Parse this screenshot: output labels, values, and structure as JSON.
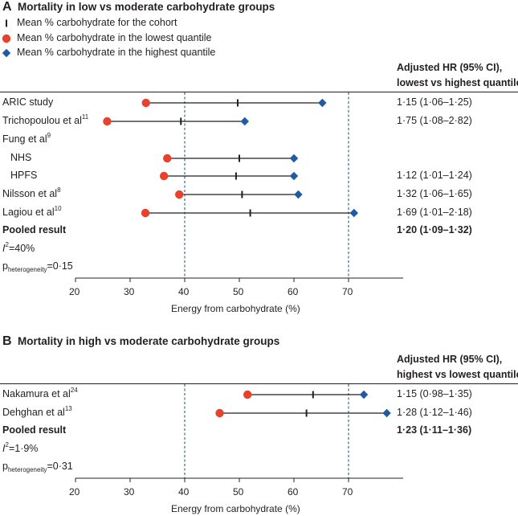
{
  "chart_data": [
    {
      "panel": "A",
      "type": "forest",
      "title": "Mortality in low vs moderate carbohydrate groups",
      "legend": [
        {
          "marker": "tick",
          "label": "Mean % carbohydrate for the cohort"
        },
        {
          "marker": "circle",
          "label": "Mean % carbohydrate in the lowest quantile"
        },
        {
          "marker": "diamond",
          "label": "Mean % carbohydrate in the highest quantile"
        }
      ],
      "hr_header": [
        "Adjusted HR (95% CI),",
        "lowest vs highest quantile"
      ],
      "xlabel": "Energy from carbohydrate (%)",
      "xlim": [
        20,
        80
      ],
      "xticks": [
        20,
        30,
        40,
        50,
        60,
        70
      ],
      "ref_lines": [
        40,
        70
      ],
      "rows": [
        {
          "label": "ARIC study",
          "sup": "",
          "low": 32.9,
          "mean": 49.7,
          "high": 65.2,
          "hr": "1·15 (1·06–1·25)"
        },
        {
          "label": "Trichopoulou et al",
          "sup": "11",
          "low": 25.8,
          "mean": 39.3,
          "high": 51.0,
          "hr": "1·75 (1·08–2·82)"
        },
        {
          "label": "Fung et al",
          "sup": "9",
          "low": null,
          "mean": null,
          "high": null,
          "hr": ""
        },
        {
          "label": "NHS",
          "sup": "",
          "indent": true,
          "low": 36.8,
          "mean": 50.0,
          "high": 60.0,
          "hr": ""
        },
        {
          "label": "HPFS",
          "sup": "",
          "indent": true,
          "low": 36.2,
          "mean": 49.4,
          "high": 60.0,
          "hr": "1·12 (1·01–1·24)"
        },
        {
          "label": "Nilsson et al",
          "sup": "8",
          "low": 39.0,
          "mean": 50.5,
          "high": 60.8,
          "hr": "1·32 (1·06–1·65)"
        },
        {
          "label": "Lagiou et al",
          "sup": "10",
          "low": 32.8,
          "mean": 52.0,
          "high": 71.0,
          "hr": "1·69 (1·01–2·18)"
        },
        {
          "label": "Pooled result",
          "sup": "",
          "bold": true,
          "low": null,
          "mean": null,
          "high": null,
          "hr": "1·20 (1·09–1·32)"
        }
      ],
      "stats": {
        "i2_symbol": "I",
        "i2_value": "=40%",
        "p_symbol": "p",
        "p_sub": "heterogeneity",
        "p_value": "=0·15"
      }
    },
    {
      "panel": "B",
      "type": "forest",
      "title": "Mortality in high vs moderate carbohydrate groups",
      "hr_header": [
        "Adjusted HR (95% CI),",
        "highest vs lowest quantile"
      ],
      "xlabel": "Energy from carbohydrate (%)",
      "xlim": [
        20,
        80
      ],
      "xticks": [
        20,
        30,
        40,
        50,
        60,
        70
      ],
      "ref_lines": [
        40,
        70
      ],
      "rows": [
        {
          "label": "Nakamura et al",
          "sup": "24",
          "low": 51.5,
          "mean": 63.5,
          "high": 72.8,
          "hr": "1·15 (0·98–1·35)"
        },
        {
          "label": "Dehghan et al",
          "sup": "13",
          "low": 46.4,
          "mean": 62.3,
          "high": 77.0,
          "hr": "1·28 (1·12–1·46)"
        },
        {
          "label": "Pooled result",
          "sup": "",
          "bold": true,
          "low": null,
          "mean": null,
          "high": null,
          "hr": "1·23 (1·11–1·36)"
        }
      ],
      "stats": {
        "i2_symbol": "I",
        "i2_value": "=1·9%",
        "p_symbol": "p",
        "p_sub": "heterogeneity",
        "p_value": "=0·31"
      }
    }
  ],
  "colors": {
    "circle": "#e8412c",
    "diamond": "#1f5aa6",
    "line": "#231f20",
    "ref": "#2c5f7c"
  }
}
